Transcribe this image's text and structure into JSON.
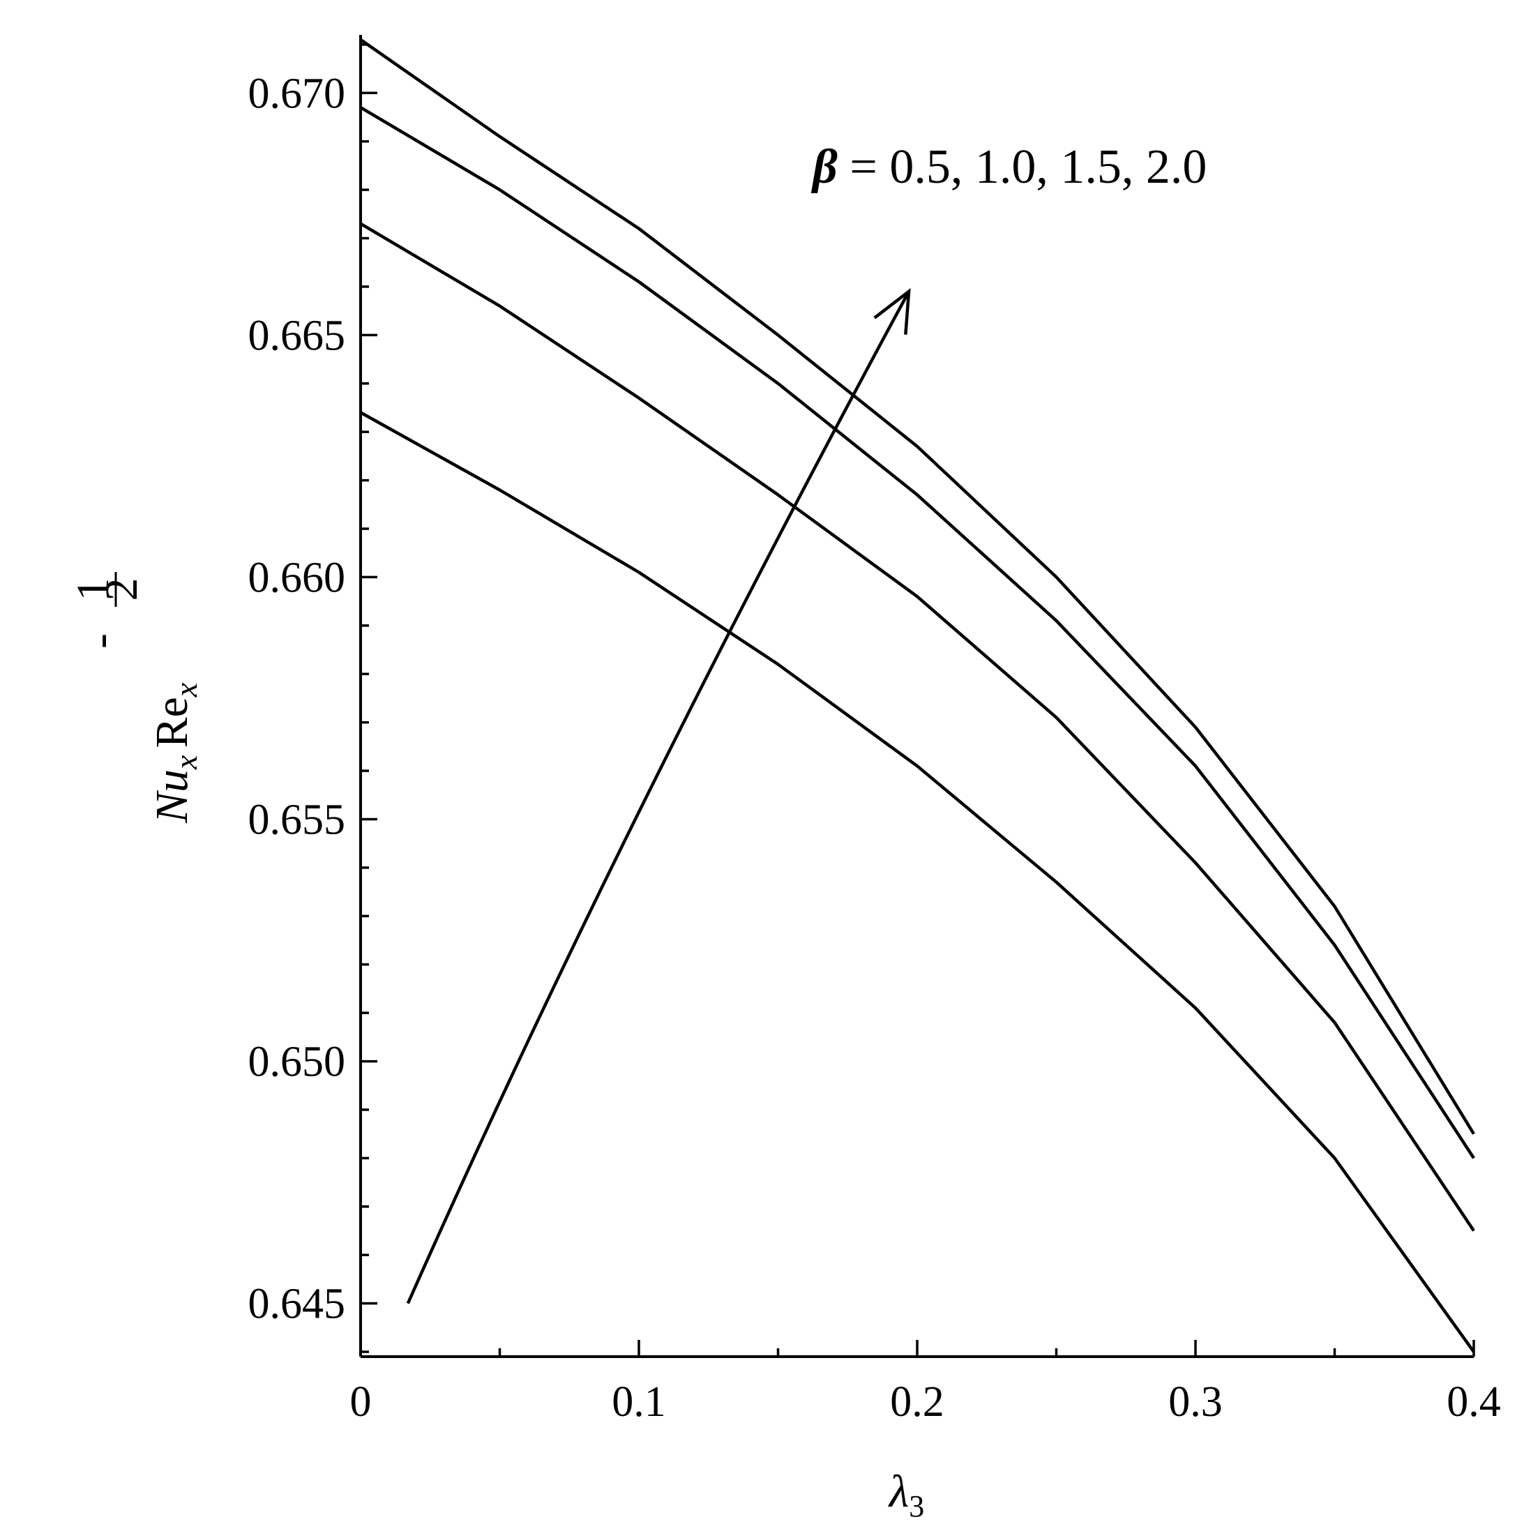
{
  "chart_data": {
    "type": "line",
    "xlabel": {
      "main": "λ",
      "sub": "3"
    },
    "ylabel": {
      "base": "Nu",
      "base_sub": "x",
      "factor": "Re",
      "factor_sub": "x",
      "exp_sign": "-",
      "exp_num": "1",
      "exp_den": "2"
    },
    "xlim": [
      0,
      0.4
    ],
    "ylim": [
      0.6439,
      0.6712
    ],
    "x_ticks": [
      {
        "value": 0,
        "label": "0"
      },
      {
        "value": 0.1,
        "label": "0.1"
      },
      {
        "value": 0.2,
        "label": "0.2"
      },
      {
        "value": 0.3,
        "label": "0.3"
      },
      {
        "value": 0.4,
        "label": "0.4"
      }
    ],
    "x_minor_ticks": [
      0.05,
      0.15,
      0.25,
      0.35
    ],
    "y_ticks": [
      {
        "value": 0.645,
        "label": "0.645"
      },
      {
        "value": 0.65,
        "label": "0.650"
      },
      {
        "value": 0.655,
        "label": "0.655"
      },
      {
        "value": 0.66,
        "label": "0.660"
      },
      {
        "value": 0.665,
        "label": "0.665"
      },
      {
        "value": 0.67,
        "label": "0.670"
      }
    ],
    "y_minor_step": 0.001,
    "grid": false,
    "legend": "none",
    "x": [
      0,
      0.05,
      0.1,
      0.15,
      0.2,
      0.25,
      0.3,
      0.35,
      0.4
    ],
    "series": [
      {
        "values": [
          0.6634,
          0.6618,
          0.6601,
          0.6582,
          0.6561,
          0.6537,
          0.6511,
          0.648,
          0.644
        ]
      },
      {
        "values": [
          0.6673,
          0.6656,
          0.6637,
          0.6617,
          0.6596,
          0.6571,
          0.6541,
          0.6508,
          0.6465
        ]
      },
      {
        "values": [
          0.6697,
          0.668,
          0.6661,
          0.664,
          0.6617,
          0.6591,
          0.6561,
          0.6524,
          0.648
        ]
      },
      {
        "values": [
          0.6711,
          0.6691,
          0.6672,
          0.665,
          0.6627,
          0.66,
          0.6569,
          0.6532,
          0.6485
        ]
      }
    ],
    "annotation": {
      "symbol": "β",
      "text": " = 0.5, 1.0, 1.5, 2.0",
      "arrow_from": [
        0.017,
        0.645
      ],
      "arrow_to": [
        0.197,
        0.6659
      ]
    },
    "colors": {
      "line": "#000000",
      "background": "#ffffff"
    }
  }
}
